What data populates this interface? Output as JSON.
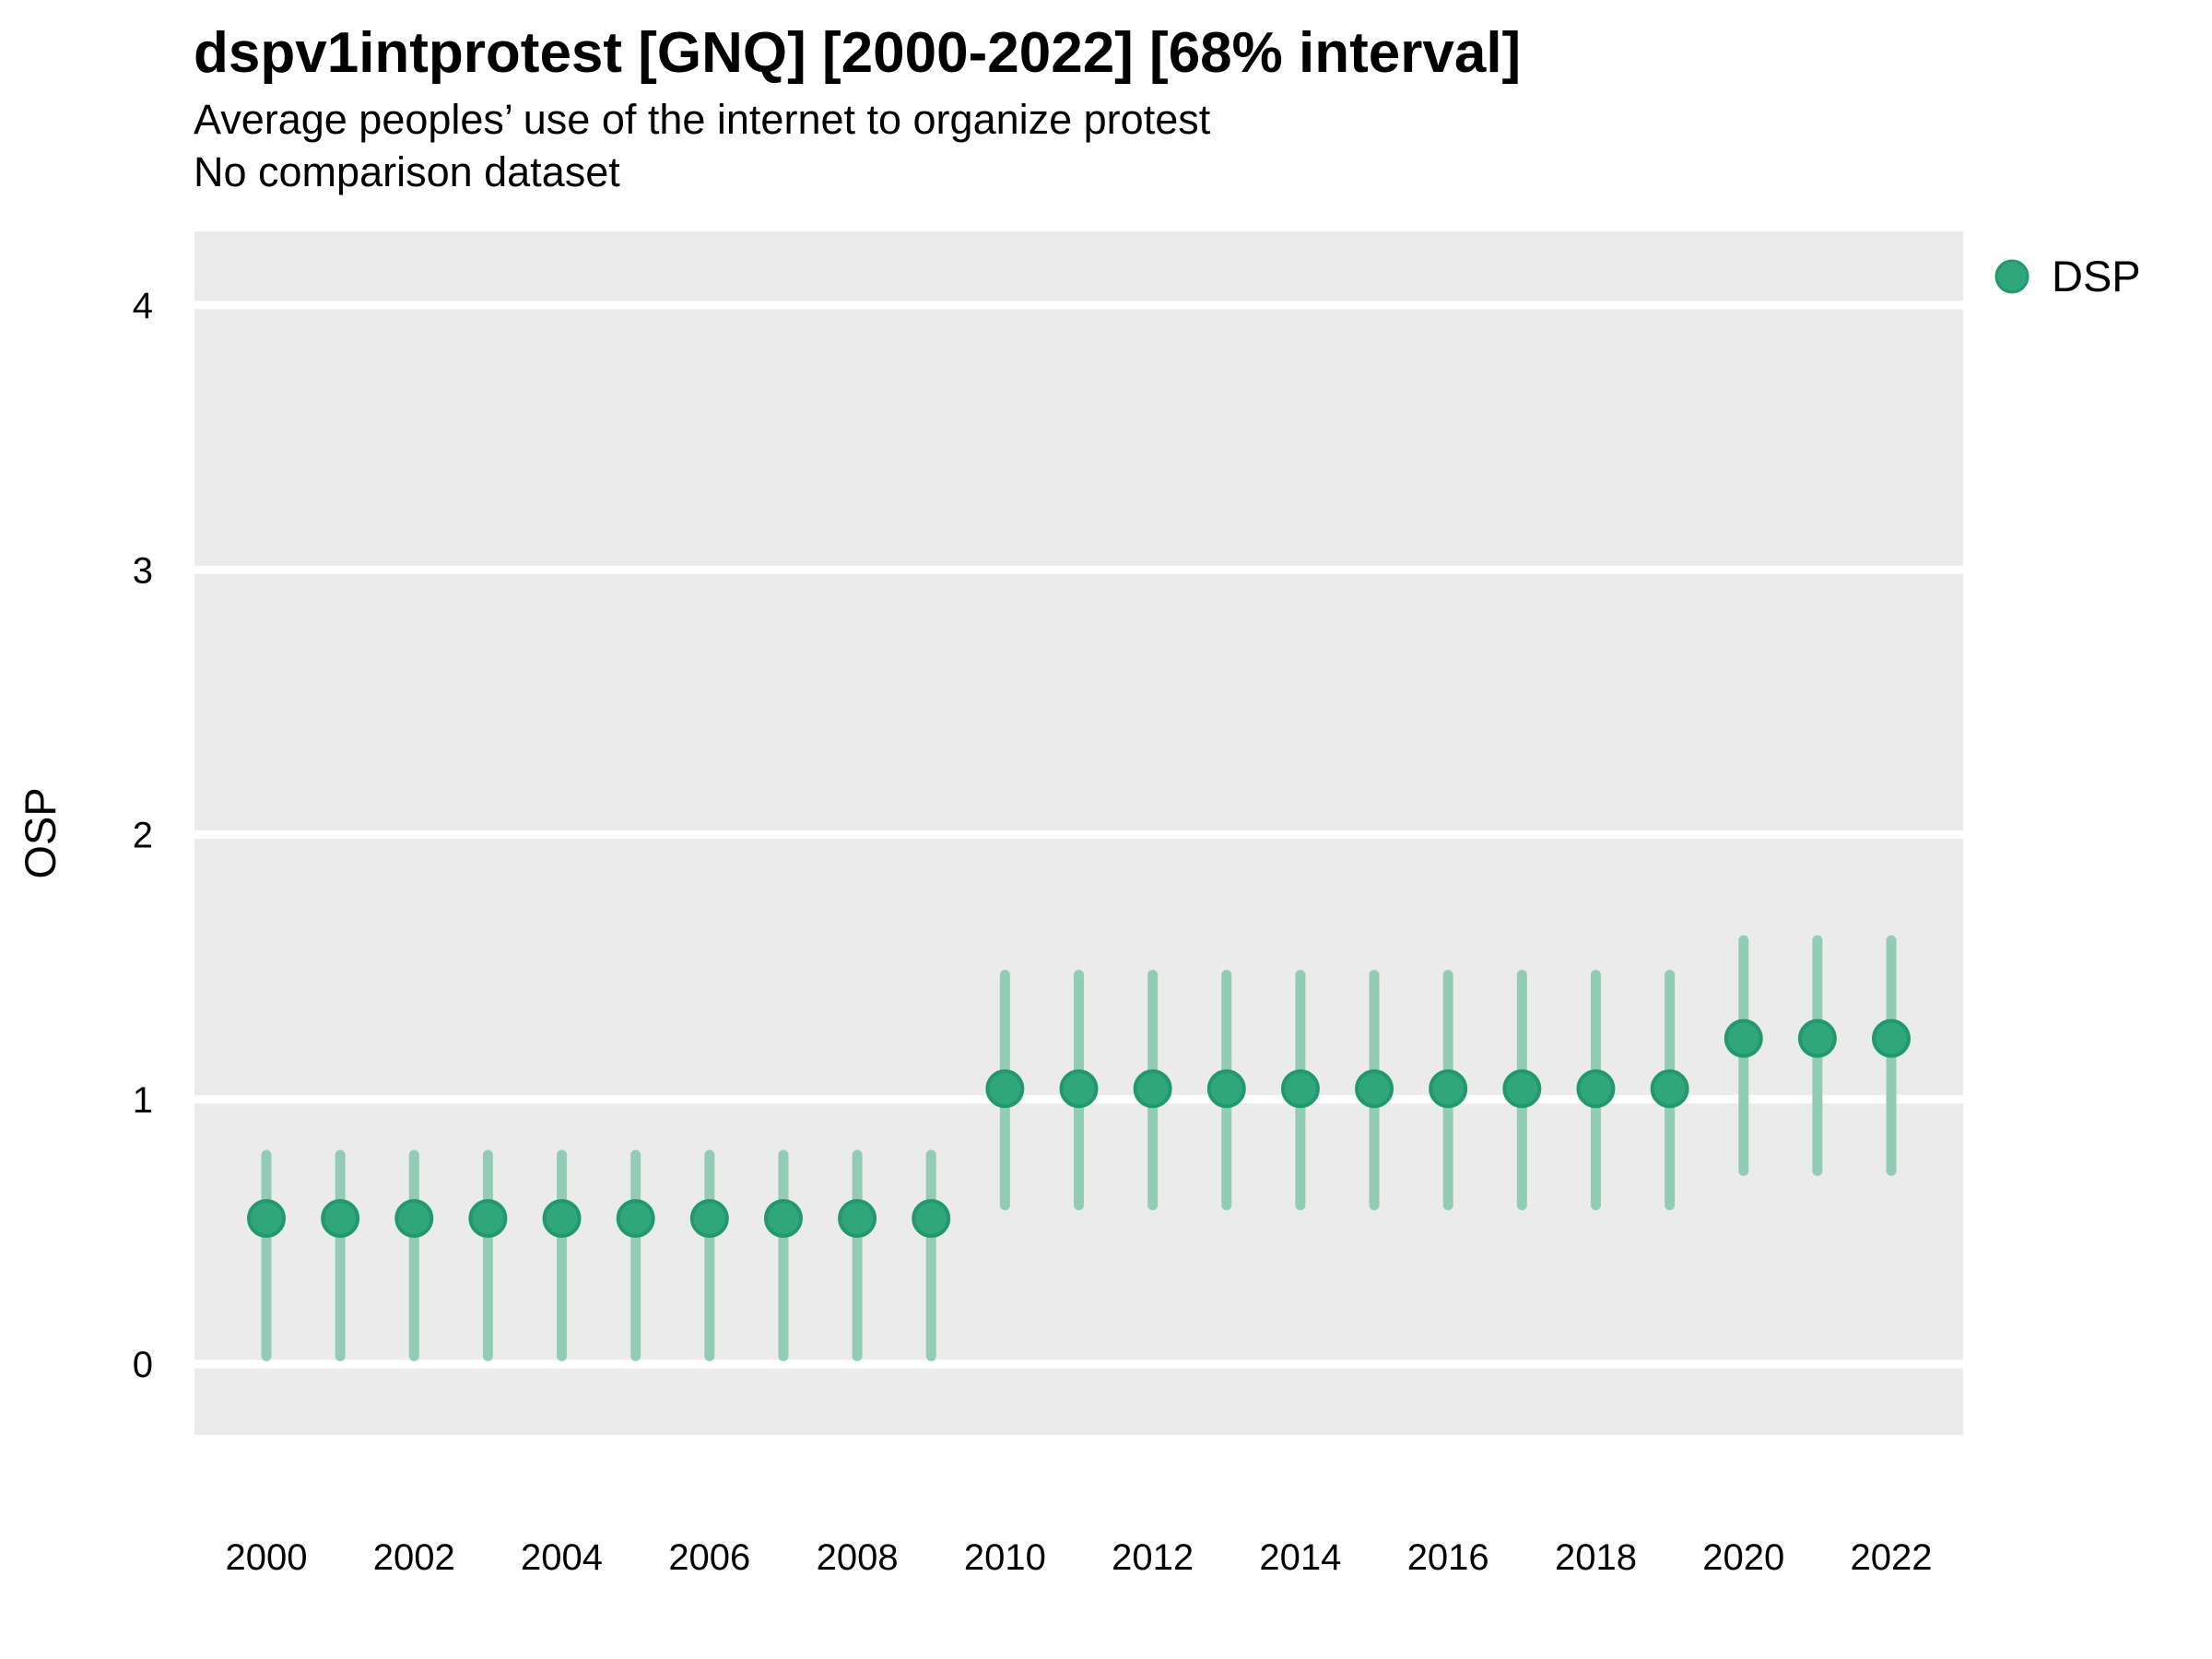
{
  "chart_data": {
    "type": "pointrange",
    "title": "dspv1intprotest [GNQ] [2000-2022] [68% interval]",
    "subtitle": "Average peoples’ use of the internet to organize protest",
    "note": "No comparison dataset",
    "xlabel": "",
    "ylabel": "OSP",
    "ylim": [
      0,
      4
    ],
    "y_ticks": [
      0,
      1,
      2,
      3,
      4
    ],
    "x_ticks": [
      2000,
      2002,
      2004,
      2006,
      2008,
      2010,
      2012,
      2014,
      2016,
      2018,
      2020,
      2022
    ],
    "grid": "horizontal-major-only",
    "interval_level": "68%",
    "legend": {
      "position": "right",
      "entries": [
        {
          "label": "DSP",
          "color": "#2fa77b"
        }
      ]
    },
    "series": [
      {
        "name": "DSP",
        "points": [
          {
            "year": 2000,
            "estimate": 0.55,
            "lower": 0.03,
            "upper": 0.79
          },
          {
            "year": 2001,
            "estimate": 0.55,
            "lower": 0.03,
            "upper": 0.79
          },
          {
            "year": 2002,
            "estimate": 0.55,
            "lower": 0.03,
            "upper": 0.79
          },
          {
            "year": 2003,
            "estimate": 0.55,
            "lower": 0.03,
            "upper": 0.79
          },
          {
            "year": 2004,
            "estimate": 0.55,
            "lower": 0.03,
            "upper": 0.79
          },
          {
            "year": 2005,
            "estimate": 0.55,
            "lower": 0.03,
            "upper": 0.79
          },
          {
            "year": 2006,
            "estimate": 0.55,
            "lower": 0.03,
            "upper": 0.79
          },
          {
            "year": 2007,
            "estimate": 0.55,
            "lower": 0.03,
            "upper": 0.79
          },
          {
            "year": 2008,
            "estimate": 0.55,
            "lower": 0.03,
            "upper": 0.79
          },
          {
            "year": 2009,
            "estimate": 0.55,
            "lower": 0.03,
            "upper": 0.79
          },
          {
            "year": 2010,
            "estimate": 1.04,
            "lower": 0.6,
            "upper": 1.47
          },
          {
            "year": 2011,
            "estimate": 1.04,
            "lower": 0.6,
            "upper": 1.47
          },
          {
            "year": 2012,
            "estimate": 1.04,
            "lower": 0.6,
            "upper": 1.47
          },
          {
            "year": 2013,
            "estimate": 1.04,
            "lower": 0.6,
            "upper": 1.47
          },
          {
            "year": 2014,
            "estimate": 1.04,
            "lower": 0.6,
            "upper": 1.47
          },
          {
            "year": 2015,
            "estimate": 1.04,
            "lower": 0.6,
            "upper": 1.47
          },
          {
            "year": 2016,
            "estimate": 1.04,
            "lower": 0.6,
            "upper": 1.47
          },
          {
            "year": 2017,
            "estimate": 1.04,
            "lower": 0.6,
            "upper": 1.47
          },
          {
            "year": 2018,
            "estimate": 1.04,
            "lower": 0.6,
            "upper": 1.47
          },
          {
            "year": 2019,
            "estimate": 1.04,
            "lower": 0.6,
            "upper": 1.47
          },
          {
            "year": 2020,
            "estimate": 1.23,
            "lower": 0.73,
            "upper": 1.6
          },
          {
            "year": 2021,
            "estimate": 1.23,
            "lower": 0.73,
            "upper": 1.6
          },
          {
            "year": 2022,
            "estimate": 1.23,
            "lower": 0.73,
            "upper": 1.6
          }
        ]
      }
    ]
  },
  "colors": {
    "point": "#2fa77b",
    "point_stroke": "#22986d",
    "interval": "#93ccb4",
    "panel_bg": "#ebebeb",
    "grid": "#ffffff",
    "text": "#000000",
    "background": "#ffffff"
  }
}
